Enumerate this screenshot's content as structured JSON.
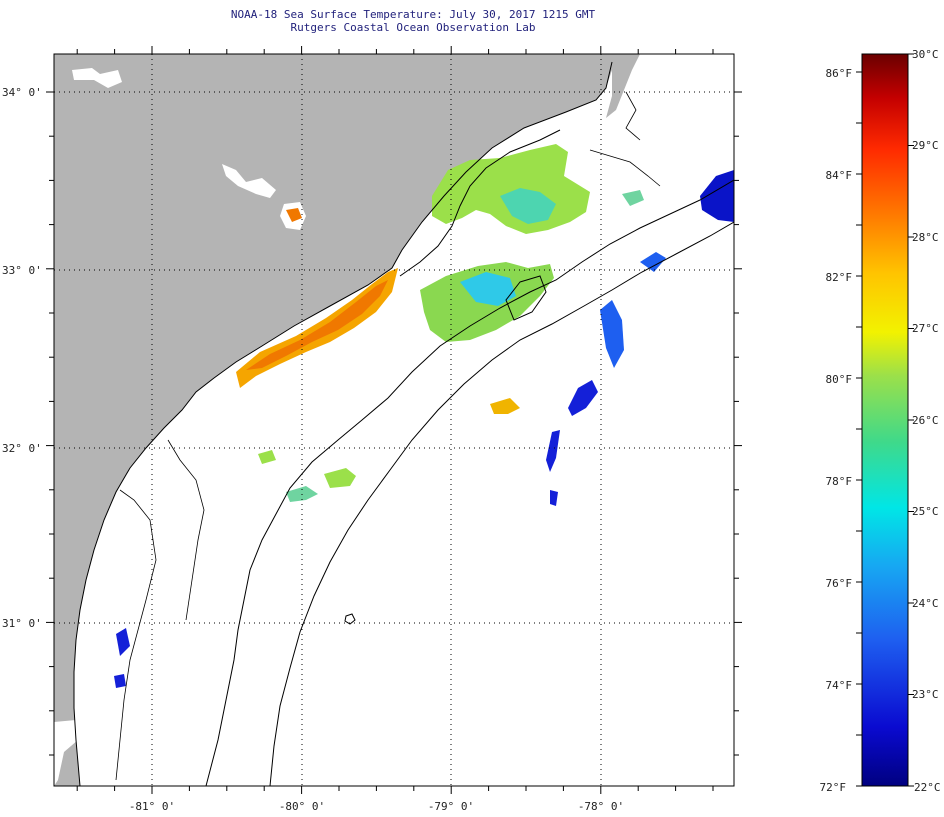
{
  "header": {
    "title": "NOAA-18 Sea Surface Temperature:  July 30, 2017 1215 GMT",
    "subtitle": "Rutgers Coastal Ocean Observation Lab"
  },
  "map": {
    "lat_ticks": [
      "34° 0'",
      "33° 0'",
      "32° 0'",
      "31° 0'"
    ],
    "lon_ticks": [
      "-81° 0'",
      "-80° 0'",
      "-79° 0'",
      "-78° 0'"
    ],
    "land_color": "#b4b4b4",
    "cloud_color": "#ffffff"
  },
  "colorbar": {
    "fahrenheit": [
      "86°F",
      "84°F",
      "82°F",
      "80°F",
      "78°F",
      "76°F",
      "74°F",
      "72°F"
    ],
    "celsius": [
      "30°C",
      "29°C",
      "28°C",
      "27°C",
      "26°C",
      "25°C",
      "24°C",
      "23°C",
      "22°C"
    ],
    "colors": [
      "#6b0000",
      "#c40000",
      "#ff2a00",
      "#ff7a00",
      "#ffc400",
      "#f2f200",
      "#9be04a",
      "#3fd98a",
      "#00e6e6",
      "#17a7f2",
      "#1e5ff0",
      "#1420d8",
      "#000080"
    ]
  }
}
